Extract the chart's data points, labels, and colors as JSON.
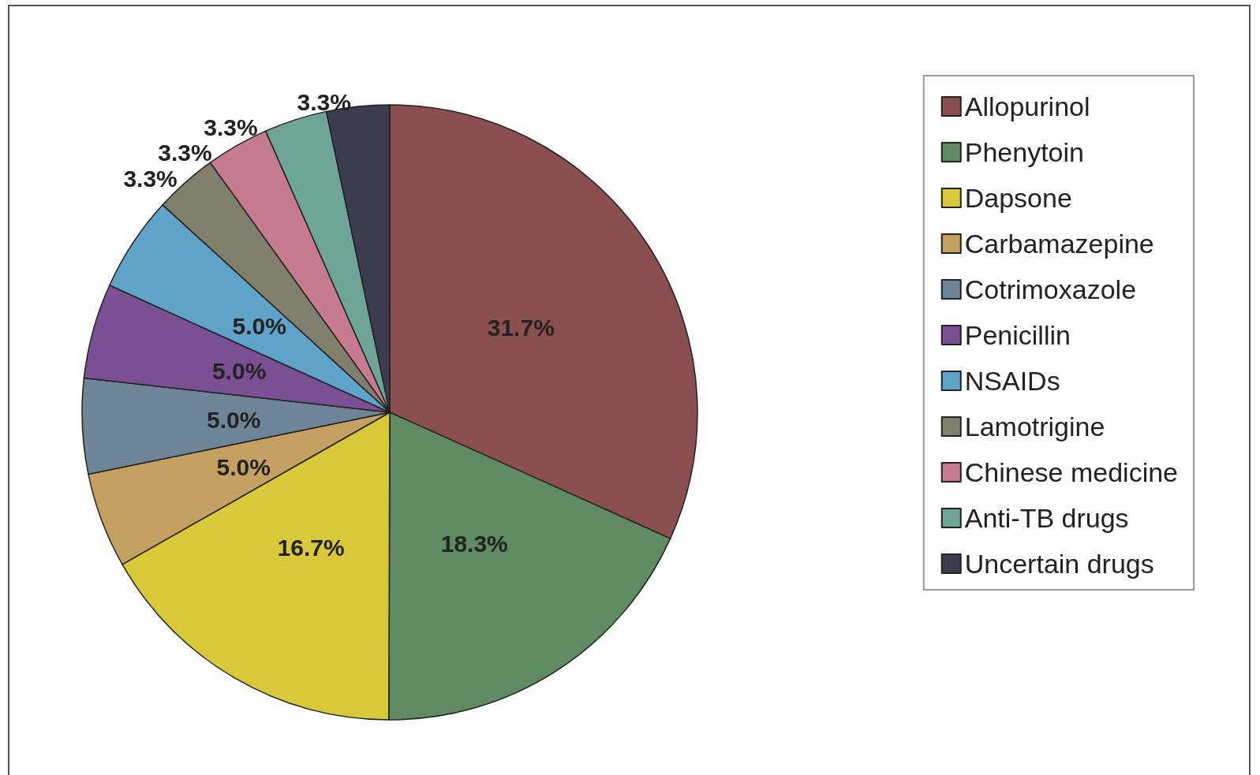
{
  "chart_data": {
    "type": "pie",
    "categories": [
      "Allopurinol",
      "Phenytoin",
      "Dapsone",
      "Carbamazepine",
      "Cotrimoxazole",
      "Penicillin",
      "NSAIDs",
      "Lamotrigine",
      "Chinese medicine",
      "Anti-TB drugs",
      "Uncertain drugs"
    ],
    "values": [
      31.7,
      18.3,
      16.7,
      5.0,
      5.0,
      5.0,
      5.0,
      3.3,
      3.3,
      3.3,
      3.3
    ],
    "value_labels": [
      "31.7%",
      "18.3%",
      "16.7%",
      "5.0%",
      "5.0%",
      "5.0%",
      "5.0%",
      "3.3%",
      "3.3%",
      "3.3%",
      "3.3%"
    ],
    "colors": [
      "#8b4f4f",
      "#5f8a62",
      "#d8c83a",
      "#c4a162",
      "#6e8497",
      "#7a4f93",
      "#5fa4c8",
      "#7f7f6c",
      "#c77b8e",
      "#6ea598",
      "#3d3b4f"
    ],
    "legend": "top right"
  }
}
